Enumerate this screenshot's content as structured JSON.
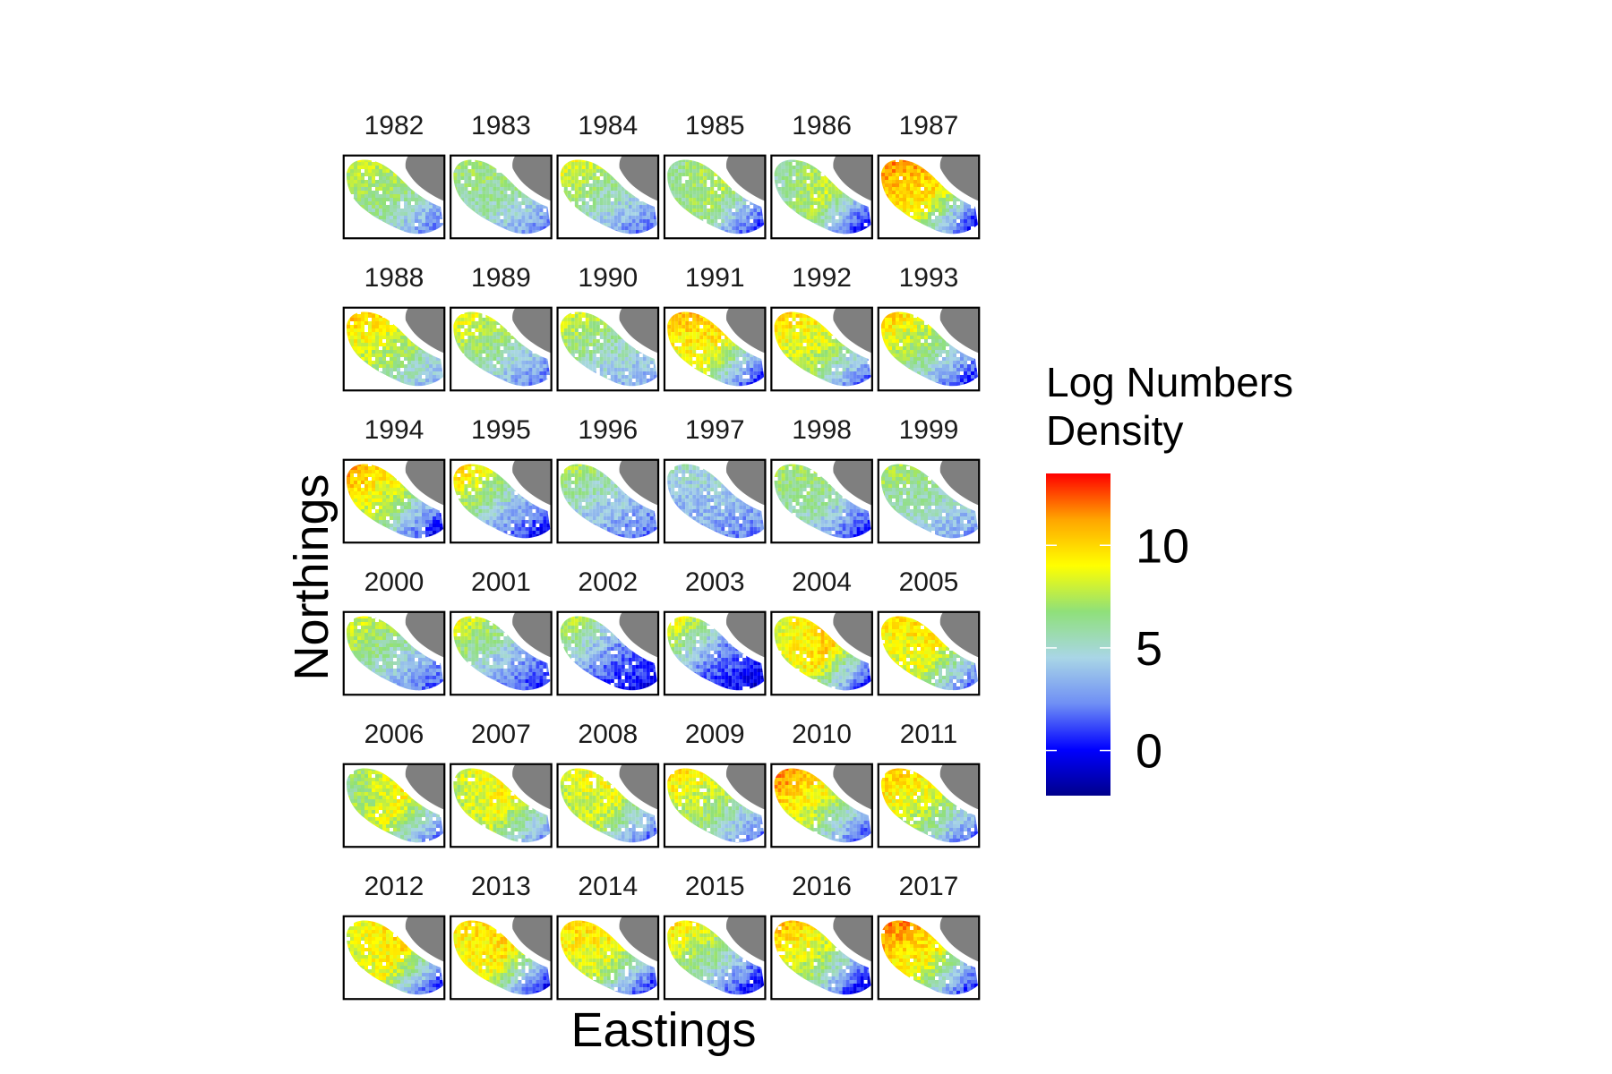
{
  "chart_data": {
    "type": "heatmap",
    "xlabel": "Eastings",
    "ylabel": "Northings",
    "legend": {
      "title_lines": [
        "Log Numbers",
        "Density"
      ],
      "ticks": [
        {
          "value": 0,
          "label": "0"
        },
        {
          "value": 5,
          "label": "5"
        },
        {
          "value": 10,
          "label": "10"
        }
      ],
      "range": [
        -2.2,
        13.5
      ],
      "position": "right",
      "colors": [
        "#00008b",
        "#0000ff",
        "#6f8ff5",
        "#a9d6e6",
        "#8fe07a",
        "#ffff00",
        "#ffa500",
        "#ff0000"
      ]
    },
    "land_color": "#7f7f7f",
    "facet_columns": 6,
    "panels": [
      {
        "year": "1982",
        "north": 8.5,
        "center": 7.0,
        "south": 2.0
      },
      {
        "year": "1983",
        "north": 7.5,
        "center": 6.5,
        "south": 2.5
      },
      {
        "year": "1984",
        "north": 9.5,
        "center": 6.0,
        "south": 2.0
      },
      {
        "year": "1985",
        "north": 6.5,
        "center": 8.0,
        "south": 0.5
      },
      {
        "year": "1986",
        "north": 6.0,
        "center": 8.5,
        "south": -0.5
      },
      {
        "year": "1987",
        "north": 12.0,
        "center": 10.0,
        "south": -0.5
      },
      {
        "year": "1988",
        "north": 11.0,
        "center": 8.0,
        "south": 3.5
      },
      {
        "year": "1989",
        "north": 9.5,
        "center": 6.5,
        "south": 2.0
      },
      {
        "year": "1990",
        "north": 9.0,
        "center": 6.0,
        "south": 3.5
      },
      {
        "year": "1991",
        "north": 11.0,
        "center": 9.5,
        "south": 0.0
      },
      {
        "year": "1992",
        "north": 10.5,
        "center": 8.5,
        "south": 1.5
      },
      {
        "year": "1993",
        "north": 11.0,
        "center": 7.0,
        "south": 0.5
      },
      {
        "year": "1994",
        "north": 12.0,
        "center": 8.0,
        "south": -0.5
      },
      {
        "year": "1995",
        "north": 11.0,
        "center": 5.5,
        "south": 0.0
      },
      {
        "year": "1996",
        "north": 8.0,
        "center": 5.0,
        "south": 2.0
      },
      {
        "year": "1997",
        "north": 5.5,
        "center": 4.5,
        "south": 2.5
      },
      {
        "year": "1998",
        "north": 7.5,
        "center": 6.5,
        "south": 0.5
      },
      {
        "year": "1999",
        "north": 8.0,
        "center": 6.0,
        "south": 3.0
      },
      {
        "year": "2000",
        "north": 9.0,
        "center": 6.0,
        "south": 1.5
      },
      {
        "year": "2001",
        "north": 9.5,
        "center": 5.0,
        "south": 0.5
      },
      {
        "year": "2002",
        "north": 9.0,
        "center": 3.0,
        "south": 0.0
      },
      {
        "year": "2003",
        "north": 10.0,
        "center": 3.0,
        "south": -0.5
      },
      {
        "year": "2004",
        "north": 9.0,
        "center": 10.5,
        "south": 0.0
      },
      {
        "year": "2005",
        "north": 10.0,
        "center": 9.5,
        "south": 1.5
      },
      {
        "year": "2006",
        "north": 7.0,
        "center": 9.5,
        "south": 2.0
      },
      {
        "year": "2007",
        "north": 8.5,
        "center": 9.5,
        "south": 2.5
      },
      {
        "year": "2008",
        "north": 9.0,
        "center": 9.0,
        "south": 1.5
      },
      {
        "year": "2009",
        "north": 10.5,
        "center": 7.5,
        "south": 2.0
      },
      {
        "year": "2010",
        "north": 12.5,
        "center": 8.5,
        "south": 1.0
      },
      {
        "year": "2011",
        "north": 11.0,
        "center": 8.5,
        "south": 1.5
      },
      {
        "year": "2012",
        "north": 9.0,
        "center": 10.0,
        "south": 0.0
      },
      {
        "year": "2013",
        "north": 10.0,
        "center": 10.0,
        "south": -0.5
      },
      {
        "year": "2014",
        "north": 10.5,
        "center": 9.0,
        "south": 0.0
      },
      {
        "year": "2015",
        "north": 10.5,
        "center": 6.5,
        "south": -0.5
      },
      {
        "year": "2016",
        "north": 11.5,
        "center": 8.0,
        "south": -1.0
      },
      {
        "year": "2017",
        "north": 12.5,
        "center": 9.5,
        "south": 0.0
      }
    ]
  }
}
